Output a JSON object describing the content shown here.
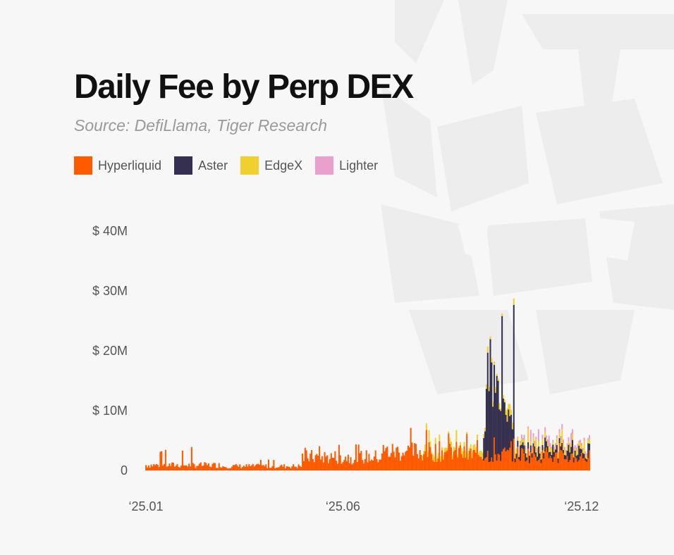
{
  "title": "Daily Fee by Perp DEX",
  "subtitle": "Source: DefiLlama, Tiger Research",
  "legend": [
    {
      "label": "Hyperliquid",
      "color": "#ff5a00"
    },
    {
      "label": "Aster",
      "color": "#35304f"
    },
    {
      "label": "EdgeX",
      "color": "#f0d02e"
    },
    {
      "label": "Lighter",
      "color": "#eaa0cc"
    }
  ],
  "chart_data": {
    "type": "bar",
    "stacked": true,
    "title": "Daily Fee by Perp DEX",
    "subtitle": "Source: DefiLlama, Tiger Research",
    "xlabel": "",
    "ylabel": "",
    "ylim": [
      0,
      40
    ],
    "y_unit": "USD millions",
    "yticks": [
      0,
      10,
      20,
      30,
      40
    ],
    "ytick_labels": [
      "0",
      "$ 10M",
      "$ 20M",
      "$ 30M",
      "$ 40M"
    ],
    "xtick_labels": [
      "‘25.01",
      "‘25.06",
      "‘25.12"
    ],
    "xticks": [
      "2025-01-01",
      "2025-06-01",
      "2025-12-01"
    ],
    "x_range": [
      "2025-01-01",
      "2025-12-07"
    ],
    "legend_position": "top-left",
    "grid": false,
    "series": [
      {
        "name": "Hyperliquid",
        "color": "#ff5a00",
        "approx_daily_fee_USD_M": [
          {
            "from": "2025-01-01",
            "to": "2025-02-28",
            "typical": 1.0,
            "peak": 4.0
          },
          {
            "from": "2025-03-01",
            "to": "2025-04-30",
            "typical": 0.8,
            "peak": 2.0
          },
          {
            "from": "2025-05-01",
            "to": "2025-06-30",
            "typical": 2.5,
            "peak": 4.5
          },
          {
            "from": "2025-07-01",
            "to": "2025-08-31",
            "typical": 3.5,
            "peak": 7.5
          },
          {
            "from": "2025-09-01",
            "to": "2025-10-31",
            "typical": 3.0,
            "peak": 6.5
          },
          {
            "from": "2025-11-01",
            "to": "2025-12-07",
            "typical": 2.5,
            "peak": 5.0
          }
        ]
      },
      {
        "name": "Aster",
        "color": "#35304f",
        "approx_daily_fee_USD_M": [
          {
            "from": "2025-09-17",
            "to": "2025-10-10",
            "typical": 15.0,
            "peak": 24.0
          },
          {
            "from": "2025-10-11",
            "to": "2025-12-07",
            "typical": 1.0,
            "peak": 3.0
          }
        ]
      },
      {
        "name": "EdgeX",
        "color": "#f0d02e",
        "approx_daily_fee_USD_M": [
          {
            "from": "2025-08-01",
            "to": "2025-12-07",
            "typical": 0.8,
            "peak": 2.5
          }
        ]
      },
      {
        "name": "Lighter",
        "color": "#eaa0cc",
        "approx_daily_fee_USD_M": [
          {
            "from": "2025-10-15",
            "to": "2025-12-07",
            "typical": 0.6,
            "peak": 2.0
          }
        ]
      }
    ]
  }
}
